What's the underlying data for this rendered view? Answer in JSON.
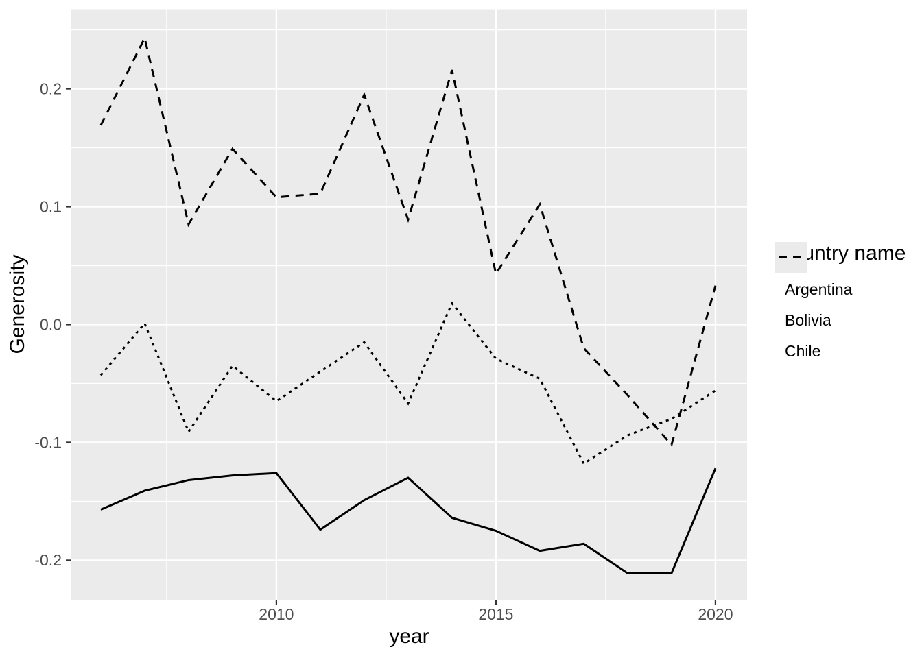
{
  "chart_data": {
    "type": "line",
    "title": "",
    "xlabel": "year",
    "ylabel": "Generosity",
    "x": [
      2006,
      2007,
      2008,
      2009,
      2010,
      2011,
      2012,
      2013,
      2014,
      2015,
      2016,
      2017,
      2018,
      2019,
      2020
    ],
    "series": [
      {
        "name": "Argentina",
        "linetype": "solid",
        "values": [
          -0.157,
          -0.141,
          -0.132,
          -0.128,
          -0.126,
          -0.174,
          -0.149,
          -0.13,
          -0.164,
          -0.175,
          -0.192,
          -0.186,
          -0.211,
          -0.211,
          -0.122
        ]
      },
      {
        "name": "Bolivia",
        "linetype": "dotted",
        "values": [
          -0.043,
          0.001,
          -0.091,
          -0.035,
          -0.065,
          -0.04,
          -0.015,
          -0.067,
          0.018,
          -0.029,
          -0.046,
          -0.118,
          -0.094,
          -0.08,
          -0.056
        ]
      },
      {
        "name": "Chile",
        "linetype": "dashed",
        "values": [
          0.169,
          0.243,
          0.085,
          0.149,
          0.108,
          0.111,
          0.195,
          0.089,
          0.216,
          0.043,
          0.102,
          -0.02,
          -0.06,
          -0.102,
          0.033
        ]
      }
    ],
    "x_ticks": {
      "values": [
        2010,
        2015,
        2020
      ],
      "labels": [
        "2010",
        "2015",
        "2020"
      ]
    },
    "x_minor": [
      2007.5,
      2012.5,
      2017.5
    ],
    "y_ticks": {
      "values": [
        0.2,
        0.1,
        0.0,
        -0.1,
        -0.2
      ],
      "labels": [
        "0.2",
        "0.1",
        "0.0",
        "-0.1",
        "-0.2"
      ]
    },
    "y_minor": [
      0.25,
      0.15,
      0.05,
      -0.05,
      -0.15
    ],
    "xlim": [
      2005.33,
      2020.72
    ],
    "ylim": [
      -0.2335,
      0.2675
    ],
    "grid": true,
    "legend": {
      "title": "Country name",
      "position": "right"
    },
    "colors": {
      "panel_bg": "#EBEBEB",
      "grid": "#FFFFFF",
      "line": "#000000",
      "tick_text": "#4D4D4D",
      "tick_mark": "#333333",
      "title_text": "#000000",
      "legend_key_bg": "#EBEBEB"
    }
  }
}
